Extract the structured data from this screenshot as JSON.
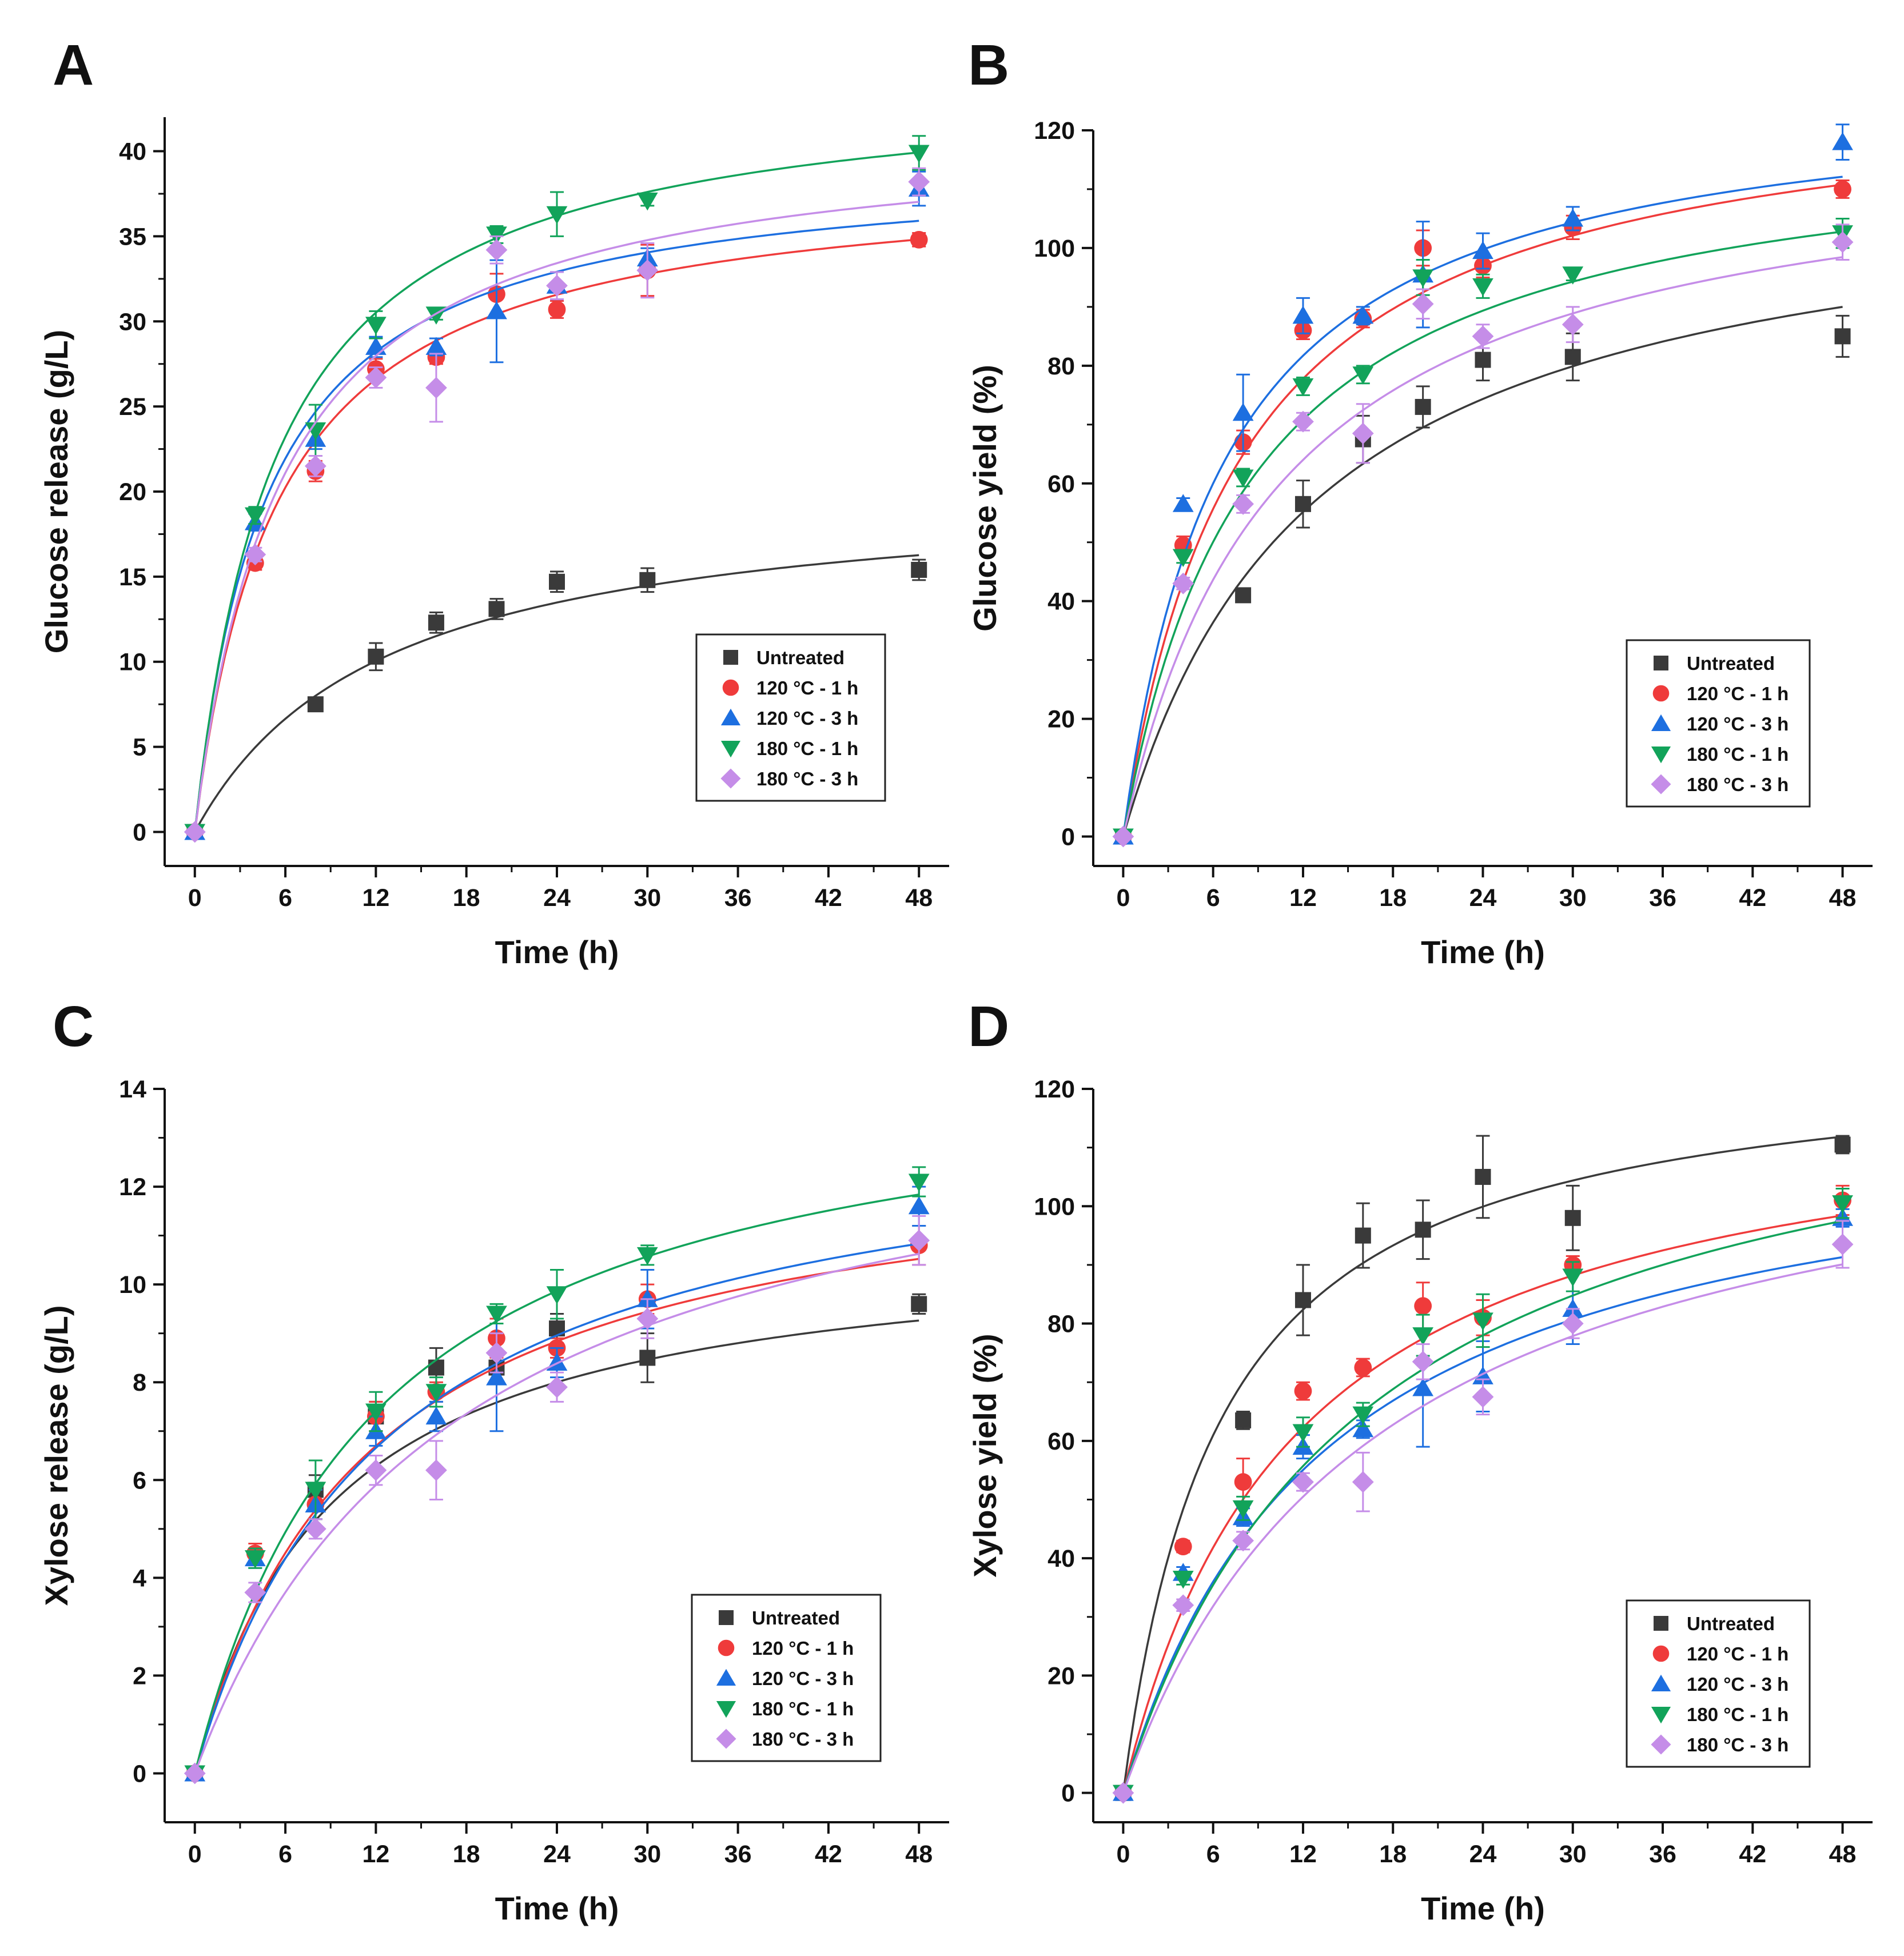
{
  "colors": {
    "Untreated": "#3a3a3a",
    "120 °C - 1 h": "#ef3b3b",
    "120 °C - 3 h": "#1d6fe0",
    "180 °C - 1 h": "#12a35a",
    "180 °C - 3 h": "#c58de8",
    "axis": "#111111"
  },
  "chart_data": [
    {
      "panel": "A",
      "type": "scatter",
      "xlabel": "Time (h)",
      "ylabel": "Glucose release (g/L)",
      "xlim": [
        -2,
        50
      ],
      "ylim": [
        -2,
        42
      ],
      "xticks": [
        0,
        6,
        12,
        18,
        24,
        30,
        36,
        42,
        48
      ],
      "yticks": [
        0,
        5,
        10,
        15,
        20,
        25,
        30,
        35,
        40
      ],
      "x": [
        0,
        4,
        8,
        12,
        16,
        20,
        24,
        30,
        48
      ],
      "legend_position": "bottom-right",
      "series": [
        {
          "name": "Untreated",
          "marker": "square",
          "values": [
            0,
            null,
            7.5,
            10.3,
            12.3,
            13.1,
            14.7,
            14.8,
            15.4
          ],
          "errors": [
            0,
            null,
            0.3,
            0.8,
            0.6,
            0.6,
            0.6,
            0.7,
            0.6
          ],
          "fit": {
            "ymax": 20.5,
            "k": 12.5
          }
        },
        {
          "name": "120 °C - 1 h",
          "marker": "circle",
          "values": [
            0,
            15.8,
            21.2,
            27.2,
            27.9,
            31.6,
            30.7,
            33,
            34.8
          ],
          "errors": [
            0,
            0.4,
            0.6,
            0.6,
            0.4,
            1.2,
            0.5,
            1.5,
            0.4
          ],
          "fit": {
            "ymax": 38.8,
            "k": 5.5
          }
        },
        {
          "name": "120 °C - 3 h",
          "marker": "triangle-up",
          "values": [
            0,
            18.2,
            23.1,
            28.5,
            28.5,
            30.6,
            32.1,
            33.7,
            37.8
          ],
          "errors": [
            0,
            0.5,
            0.6,
            0.6,
            0.5,
            3,
            0.8,
            0.6,
            1
          ],
          "fit": {
            "ymax": 39.5,
            "k": 4.8
          }
        },
        {
          "name": "180 °C - 1 h",
          "marker": "triangle-down",
          "values": [
            0,
            18.6,
            23.6,
            29.8,
            30.4,
            35.1,
            36.3,
            37.1,
            39.9
          ],
          "errors": [
            0,
            0.5,
            1.5,
            0.8,
            0.3,
            0.5,
            1.3,
            0.3,
            1
          ],
          "fit": {
            "ymax": 44.5,
            "k": 5.5
          }
        },
        {
          "name": "180 °C - 3 h",
          "marker": "diamond",
          "values": [
            0,
            16.3,
            21.5,
            26.7,
            26.1,
            34.2,
            32.1,
            33,
            38.2
          ],
          "errors": [
            0,
            0.4,
            0.6,
            0.6,
            2,
            0.8,
            0.8,
            1.6,
            0.8
          ],
          "fit": {
            "ymax": 41.5,
            "k": 5.8
          }
        }
      ]
    },
    {
      "panel": "B",
      "type": "scatter",
      "xlabel": "Time (h)",
      "ylabel": "Glucose yield  (%)",
      "xlim": [
        -2,
        50
      ],
      "ylim": [
        -5,
        120
      ],
      "xticks": [
        0,
        6,
        12,
        18,
        24,
        30,
        36,
        42,
        48
      ],
      "yticks": [
        0,
        20,
        40,
        60,
        80,
        100,
        120
      ],
      "x": [
        0,
        4,
        8,
        12,
        16,
        20,
        24,
        30,
        48
      ],
      "legend_position": "bottom-right",
      "series": [
        {
          "name": "Untreated",
          "marker": "square",
          "values": [
            0,
            null,
            41,
            56.5,
            67.5,
            73,
            81,
            81.5,
            85
          ],
          "errors": [
            0,
            null,
            1,
            4,
            4,
            3.5,
            3.5,
            4,
            3.5
          ],
          "fit": {
            "ymax": 114,
            "k": 12.8
          }
        },
        {
          "name": "120 °C - 1 h",
          "marker": "circle",
          "values": [
            0,
            49.5,
            67,
            86,
            88,
            100,
            97,
            103.5,
            110
          ],
          "errors": [
            0,
            1.5,
            2,
            1.5,
            1.5,
            3,
            2,
            2,
            1.5
          ],
          "fit": {
            "ymax": 129,
            "k": 7.9
          }
        },
        {
          "name": "120 °C - 3 h",
          "marker": "triangle-up",
          "values": [
            0,
            56.5,
            72,
            88.5,
            88.5,
            95.5,
            99.5,
            105,
            118
          ],
          "errors": [
            0,
            1,
            6.5,
            3,
            1.5,
            9,
            3,
            2,
            3
          ],
          "fit": {
            "ymax": 128,
            "k": 6.8
          }
        },
        {
          "name": "180 °C - 1 h",
          "marker": "triangle-down",
          "values": [
            0,
            47.5,
            61,
            76.5,
            78.5,
            95,
            93.5,
            95.5,
            102.5
          ],
          "errors": [
            0,
            1,
            1.5,
            1.5,
            1.5,
            3,
            2,
            1,
            2.5
          ],
          "fit": {
            "ymax": 121,
            "k": 8.5
          }
        },
        {
          "name": "180 °C - 3 h",
          "marker": "diamond",
          "values": [
            0,
            43,
            56.5,
            70.5,
            68.5,
            90.5,
            85,
            87,
            101
          ],
          "errors": [
            0,
            1,
            1.5,
            1.5,
            5,
            2.5,
            2,
            3,
            3
          ],
          "fit": {
            "ymax": 120,
            "k": 10.5
          }
        }
      ]
    },
    {
      "panel": "C",
      "type": "scatter",
      "xlabel": "Time (h)",
      "ylabel": "Xylose release (g/L)",
      "xlim": [
        -2,
        50
      ],
      "ylim": [
        -1,
        14
      ],
      "xticks": [
        0,
        6,
        12,
        18,
        24,
        30,
        36,
        42,
        48
      ],
      "yticks": [
        0,
        2,
        4,
        6,
        8,
        10,
        12,
        14
      ],
      "x": [
        0,
        4,
        8,
        12,
        16,
        20,
        24,
        30,
        48
      ],
      "legend_position": "bottom-right",
      "series": [
        {
          "name": "Untreated",
          "marker": "square",
          "values": [
            0,
            null,
            5.8,
            7.3,
            8.3,
            8.3,
            9.1,
            8.5,
            9.6
          ],
          "errors": [
            0,
            null,
            0.3,
            0.3,
            0.4,
            0.3,
            0.3,
            0.5,
            0.2
          ],
          "fit": {
            "ymax": 11,
            "k": 9
          }
        },
        {
          "name": "120 °C - 1 h",
          "marker": "circle",
          "values": [
            0,
            4.5,
            5.5,
            7.3,
            7.8,
            8.9,
            8.7,
            9.7,
            10.8
          ],
          "errors": [
            0,
            0.2,
            0.3,
            0.3,
            0.2,
            0.4,
            0.2,
            0.3,
            0.4
          ],
          "fit": {
            "ymax": 13,
            "k": 11.3
          }
        },
        {
          "name": "120 °C - 3 h",
          "marker": "triangle-up",
          "values": [
            0,
            4.4,
            5.5,
            7,
            7.3,
            8.1,
            8.4,
            9.7,
            11.6
          ],
          "errors": [
            0,
            0.2,
            0.3,
            0.3,
            0.3,
            1.1,
            0.3,
            0.6,
            0.4
          ],
          "fit": {
            "ymax": 13.7,
            "k": 12.7
          }
        },
        {
          "name": "180 °C - 1 h",
          "marker": "triangle-down",
          "values": [
            0,
            4.4,
            5.8,
            7.4,
            7.8,
            9.4,
            9.8,
            10.6,
            12.1
          ],
          "errors": [
            0,
            0.2,
            0.6,
            0.4,
            0.3,
            0.2,
            0.5,
            0.2,
            0.3
          ],
          "fit": {
            "ymax": 14.8,
            "k": 12
          }
        },
        {
          "name": "180 °C - 3 h",
          "marker": "diamond",
          "values": [
            0,
            3.7,
            5,
            6.2,
            6.2,
            8.6,
            7.9,
            9.3,
            10.9
          ],
          "errors": [
            0,
            0.2,
            0.2,
            0.3,
            0.6,
            0.4,
            0.3,
            0.4,
            0.5
          ],
          "fit": {
            "ymax": 14.5,
            "k": 17.5
          }
        }
      ]
    },
    {
      "panel": "D",
      "type": "scatter",
      "xlabel": "Time (h)",
      "ylabel": "Xylose yield  (%)",
      "xlim": [
        -2,
        50
      ],
      "ylim": [
        -5,
        120
      ],
      "xticks": [
        0,
        6,
        12,
        18,
        24,
        30,
        36,
        42,
        48
      ],
      "yticks": [
        0,
        20,
        40,
        60,
        80,
        100,
        120
      ],
      "x": [
        0,
        4,
        8,
        12,
        16,
        20,
        24,
        30,
        48
      ],
      "legend_position": "bottom-right",
      "series": [
        {
          "name": "Untreated",
          "marker": "square",
          "values": [
            0,
            null,
            63.5,
            84,
            95,
            96,
            105,
            98,
            110.5
          ],
          "errors": [
            0,
            null,
            1.5,
            6,
            5.5,
            5,
            7,
            5.5,
            1.5
          ],
          "fit": {
            "ymax": 127,
            "k": 6.5
          }
        },
        {
          "name": "120 °C - 1 h",
          "marker": "circle",
          "values": [
            0,
            42,
            53,
            68.5,
            72.5,
            83,
            81,
            90,
            101
          ],
          "errors": [
            0,
            1,
            4,
            1.5,
            1.5,
            4,
            3,
            1.5,
            2.5
          ],
          "fit": {
            "ymax": 122,
            "k": 11.5
          }
        },
        {
          "name": "120 °C - 3 h",
          "marker": "triangle-up",
          "values": [
            0,
            37.5,
            47,
            59,
            62,
            69,
            71,
            82.5,
            98
          ],
          "errors": [
            0,
            1,
            1.5,
            2,
            1.5,
            10,
            6,
            6,
            1.5
          ],
          "fit": {
            "ymax": 117,
            "k": 13.5
          }
        },
        {
          "name": "180 °C - 1 h",
          "marker": "triangle-down",
          "values": [
            0,
            36.5,
            48.5,
            61.5,
            64.5,
            78,
            80.5,
            88,
            100.5
          ],
          "errors": [
            0,
            1,
            2,
            2.5,
            2,
            3.5,
            4.5,
            2.5,
            2.5
          ],
          "fit": {
            "ymax": 130,
            "k": 16
          }
        },
        {
          "name": "180 °C - 3 h",
          "marker": "diamond",
          "values": [
            0,
            32,
            43,
            53,
            53,
            73.5,
            67.5,
            80,
            93.5
          ],
          "errors": [
            0,
            1,
            1.5,
            1.5,
            5,
            3,
            3,
            2.5,
            4
          ],
          "fit": {
            "ymax": 122,
            "k": 17
          }
        }
      ]
    }
  ]
}
